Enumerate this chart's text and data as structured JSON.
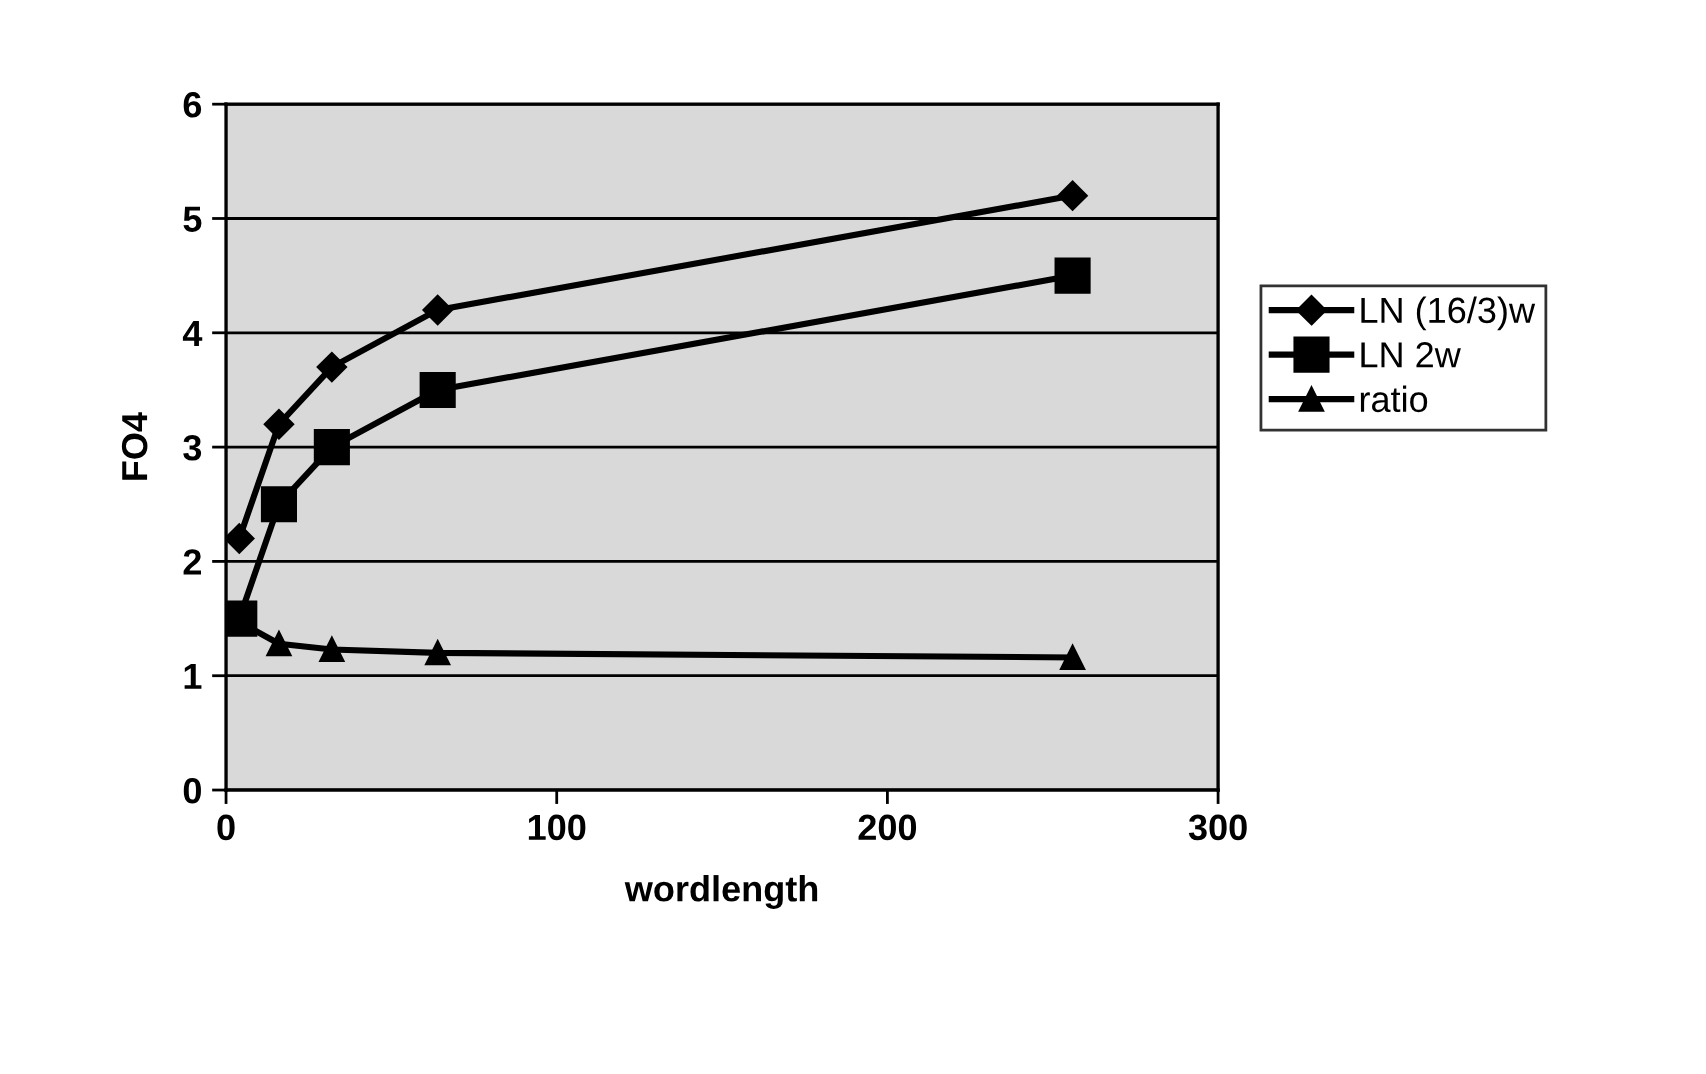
{
  "chart_data": {
    "type": "line",
    "xlabel": "wordlength",
    "ylabel": "FO4",
    "x": [
      4,
      16,
      32,
      64,
      256
    ],
    "series": [
      {
        "name": "LN (16/3)w",
        "color": "#000000",
        "marker": "diamond",
        "values": [
          2.2,
          3.2,
          3.7,
          4.2,
          5.2
        ]
      },
      {
        "name": "LN 2w",
        "color": "#000000",
        "marker": "square",
        "values": [
          1.5,
          2.5,
          3.0,
          3.5,
          4.5
        ]
      },
      {
        "name": "ratio",
        "color": "#000000",
        "marker": "triangle",
        "values": [
          1.47,
          1.28,
          1.23,
          1.2,
          1.16
        ]
      }
    ],
    "xlim": [
      0,
      300
    ],
    "xticks": [
      0,
      100,
      200,
      300
    ],
    "ylim": [
      0,
      6
    ],
    "yticks": [
      0,
      1,
      2,
      3,
      4,
      5,
      6
    ],
    "grid": "y",
    "legend": "right",
    "line_style": "solid"
  }
}
